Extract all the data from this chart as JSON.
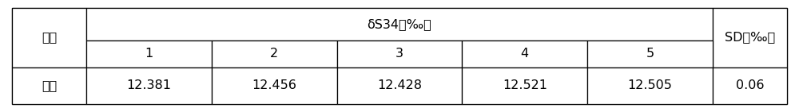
{
  "col1_header": "样品",
  "main_header": "δS34（‰）",
  "last_header": "SD（‰）",
  "sub_headers": [
    "1",
    "2",
    "3",
    "4",
    "5"
  ],
  "row_label": "海水",
  "row_values": [
    "12.381",
    "12.456",
    "12.428",
    "12.521",
    "12.505"
  ],
  "row_sd": "0.06",
  "bg_color": "#ffffff",
  "line_color": "#000000",
  "font_size": 11.5
}
